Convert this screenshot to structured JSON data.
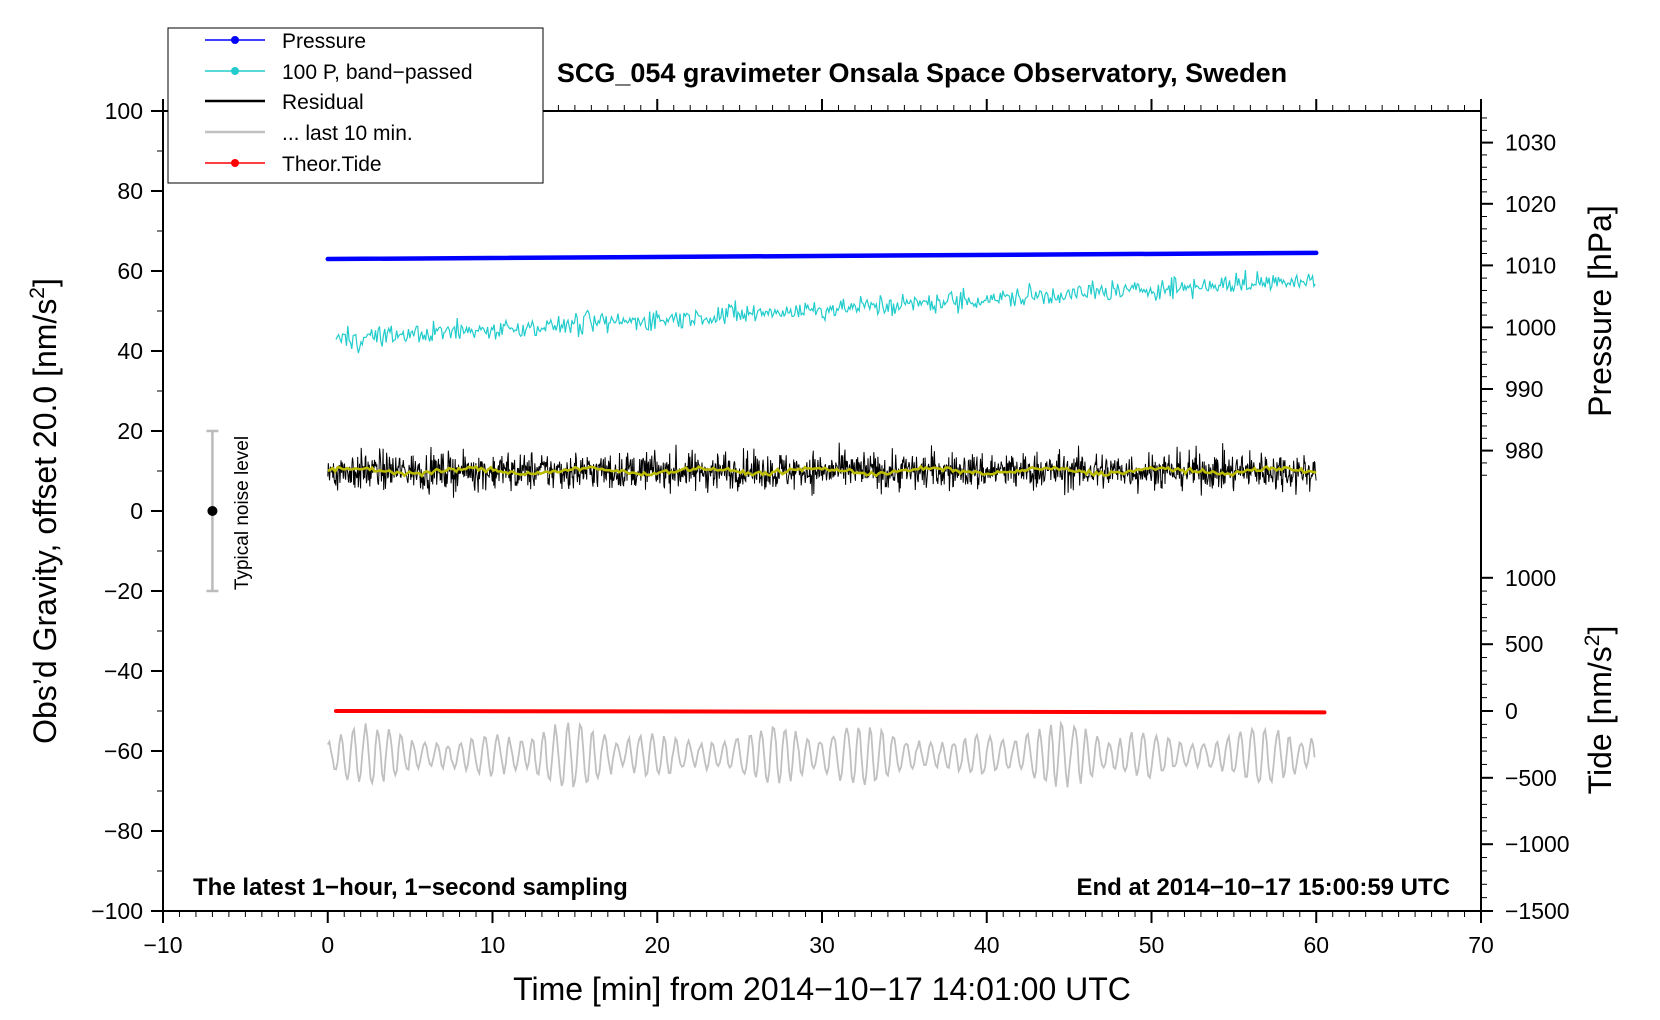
{
  "chart_data": {
    "type": "line",
    "title": "SCG_054 gravimeter Onsala Space Observatory, Sweden",
    "xlabel": "Time [min] from 2014−10−17 14:01:00 UTC",
    "ylabel": "Obs’d Gravity, offset 20.0 [nm/s²]",
    "ylabel_base": "Obs’d Gravity, offset 20.0 [nm/s",
    "ylabel_sup": "2",
    "ylabel_end": "]",
    "y2_pressure_label": "Pressure [hPa]",
    "y2_tide_label_base": "Tide [nm/s",
    "y2_tide_label_sup": "2",
    "y2_tide_label_end": "]",
    "xlim": [
      -10,
      70
    ],
    "ylim": [
      -100,
      100
    ],
    "x_ticks": [
      "−10",
      "0",
      "10",
      "20",
      "30",
      "40",
      "50",
      "60",
      "70"
    ],
    "x_tick_values": [
      -10,
      0,
      10,
      20,
      30,
      40,
      50,
      60,
      70
    ],
    "y_ticks": [
      "100",
      "80",
      "60",
      "40",
      "20",
      "0",
      "−20",
      "−40",
      "−60",
      "−80",
      "−100"
    ],
    "y_tick_values": [
      100,
      80,
      60,
      40,
      20,
      0,
      -20,
      -40,
      -60,
      -80,
      -100
    ],
    "pressure_ticks": [
      "1030",
      "1020",
      "1010",
      "1000",
      "990",
      "980"
    ],
    "pressure_tick_values": [
      1030,
      1020,
      1010,
      1000,
      990,
      980
    ],
    "pressure_axis_y_at": [
      92.1,
      76.8,
      61.4,
      45.9,
      30.5,
      15.1
    ],
    "tide_ticks": [
      "1000",
      "500",
      "0",
      "−500",
      "−1000",
      "−1500"
    ],
    "tide_tick_values": [
      1000,
      500,
      0,
      -500,
      -1000,
      -1500
    ],
    "tide_axis_y_at": [
      -16.7,
      -33.3,
      -50,
      -66.7,
      -83.3,
      -100
    ],
    "grid": false,
    "legend_position": "top-left",
    "legend": [
      {
        "label": "Pressure",
        "color": "#0000ff",
        "marker": "dot"
      },
      {
        "label": "100 P, band−passed",
        "color": "#22cccc",
        "marker": "dot"
      },
      {
        "label": "Residual",
        "color": "#000000",
        "marker": "none"
      },
      {
        "label": "... last 10 min.",
        "color": "#c0c0c0",
        "marker": "none"
      },
      {
        "label": "Theor.Tide",
        "color": "#ff0000",
        "marker": "dot"
      }
    ],
    "series": [
      {
        "name": "Pressure",
        "color": "#0000ff",
        "axis": "pressure",
        "x_range": [
          0,
          60
        ],
        "y_start": 1011.1,
        "y_end": 1012.1
      },
      {
        "name": "100 P, band−passed",
        "color": "#22cccc",
        "axis": "gravity",
        "x_range": [
          0.5,
          60
        ],
        "y_start": 43,
        "y_end": 58,
        "amplitude": 6
      },
      {
        "name": "Residual",
        "color": "#000000",
        "axis": "gravity",
        "x_range": [
          0,
          60
        ],
        "y_mean": 10,
        "amplitude": 8
      },
      {
        "name": "running mean",
        "color": "#bbbb00",
        "axis": "gravity",
        "x_range": [
          0,
          60
        ],
        "y_mean": 10,
        "amplitude": 1
      },
      {
        "name": "... last 10 min.",
        "color": "#c0c0c0",
        "axis": "gravity",
        "x_range": [
          0,
          60
        ],
        "y_mean": -61,
        "amplitude": 8
      },
      {
        "name": "Theor.Tide",
        "color": "#ff0000",
        "axis": "tide",
        "x_range": [
          0.5,
          60.5
        ],
        "y_start": 0,
        "y_end": -10
      }
    ],
    "noise_bar": {
      "label": "Typical noise level",
      "x": -7,
      "center": 0,
      "low": -20,
      "high": 20
    },
    "annotation_left": "The latest 1−hour, 1−second sampling",
    "annotation_right": "End at 2014−10−17 15:00:59 UTC"
  }
}
